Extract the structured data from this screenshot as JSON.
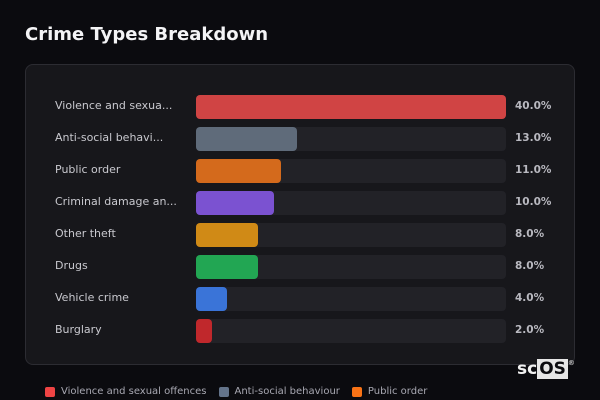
{
  "header": {
    "title": "Crime Types Breakdown"
  },
  "chart_data": {
    "type": "bar",
    "orientation": "horizontal",
    "title": "Crime Types Breakdown",
    "categories": [
      "Violence and sexual offences",
      "Anti-social behaviour",
      "Public order",
      "Criminal damage and arson",
      "Other theft",
      "Drugs",
      "Vehicle crime",
      "Burglary"
    ],
    "display_labels": [
      "Violence and sexua...",
      "Anti-social behavi...",
      "Public order",
      "Criminal damage an...",
      "Other theft",
      "Drugs",
      "Vehicle crime",
      "Burglary"
    ],
    "values": [
      40.0,
      13.0,
      11.0,
      10.0,
      8.0,
      8.0,
      4.0,
      2.0
    ],
    "value_labels": [
      "40.0%",
      "13.0%",
      "11.0%",
      "10.0%",
      "8.0%",
      "8.0%",
      "4.0%",
      "2.0%"
    ],
    "colors": [
      "#d04444",
      "#5f6b7a",
      "#d46a1c",
      "#7b52d1",
      "#d08a16",
      "#22a653",
      "#3a74d8",
      "#c0282c"
    ],
    "unit": "%",
    "scale_max": 40.0,
    "legend_position": "bottom",
    "grid": false
  },
  "legend": [
    {
      "label": "Violence and sexual offences",
      "color": "#ef4444"
    },
    {
      "label": "Anti-social behaviour",
      "color": "#64748b"
    },
    {
      "label": "Public order",
      "color": "#f97316"
    }
  ],
  "watermark": {
    "prefix": "sc",
    "boxed": "OS",
    "mark": "®"
  }
}
